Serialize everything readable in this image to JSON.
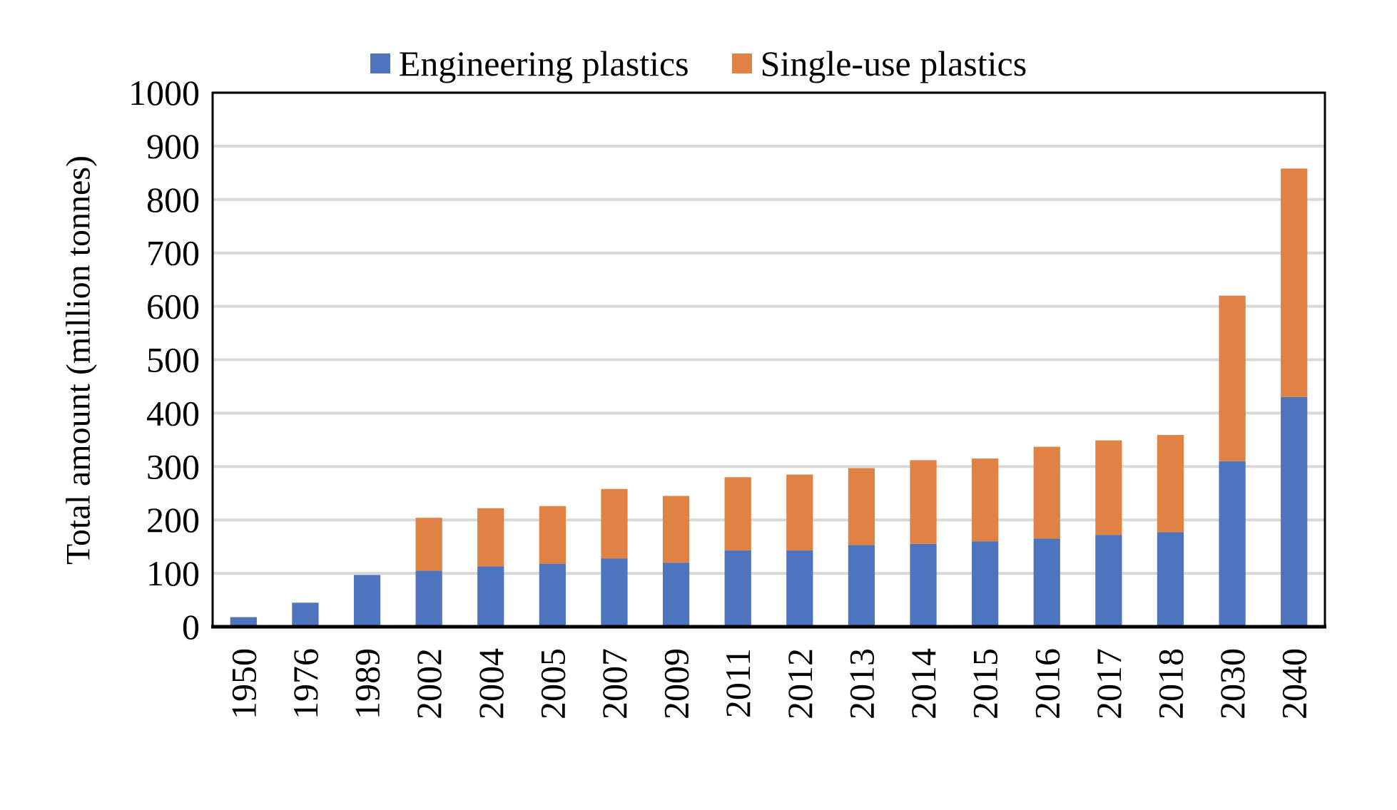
{
  "chart_data": {
    "type": "bar",
    "stacked": true,
    "title": "",
    "xlabel": "",
    "ylabel": "Total amount (million tonnes)",
    "ylim": [
      0,
      1000
    ],
    "yticks": [
      0,
      100,
      200,
      300,
      400,
      500,
      600,
      700,
      800,
      900,
      1000
    ],
    "grid": true,
    "legend_position": "top",
    "categories": [
      "1950",
      "1976",
      "1989",
      "2002",
      "2004",
      "2005",
      "2007",
      "2009",
      "2011",
      "2012",
      "2013",
      "2014",
      "2015",
      "2016",
      "2017",
      "2018",
      "2030",
      "2040"
    ],
    "series": [
      {
        "name": "Engineering plastics",
        "color": "#4e74bd",
        "values": [
          18,
          45,
          97,
          105,
          113,
          118,
          128,
          120,
          143,
          143,
          153,
          155,
          160,
          165,
          172,
          177,
          310,
          430
        ]
      },
      {
        "name": "Single-use plastics",
        "color": "#e08244",
        "values": [
          0,
          0,
          0,
          99,
          109,
          108,
          130,
          125,
          137,
          142,
          144,
          157,
          155,
          172,
          177,
          182,
          310,
          428
        ]
      }
    ]
  }
}
